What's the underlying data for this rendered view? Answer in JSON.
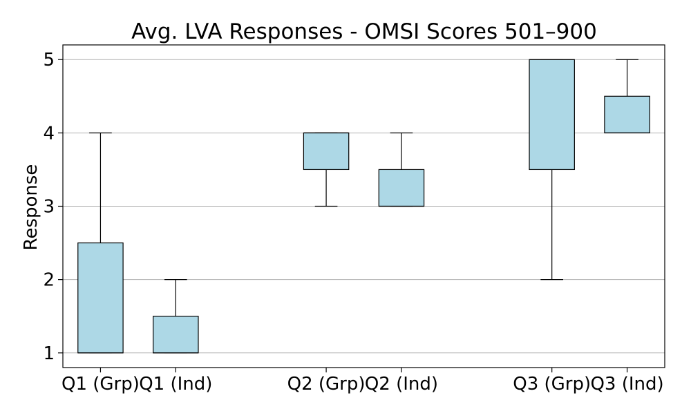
{
  "chart_data": {
    "type": "box",
    "title": "Avg. LVA Responses - OMSI Scores 501–900",
    "xlabel": "",
    "ylabel": "Response",
    "ylim": [
      0.8,
      5.2
    ],
    "yticks": [
      1,
      2,
      3,
      4,
      5
    ],
    "grid": "horizontal",
    "categories": [
      "Q1 (Grp)",
      "Q1 (Ind)",
      "Q2 (Grp)",
      "Q2 (Ind)",
      "Q3 (Grp)",
      "Q3 (Ind)"
    ],
    "x": [
      1,
      2,
      4,
      5,
      7,
      8
    ],
    "boxes": [
      {
        "label": "Q1 (Grp)",
        "whisker_low": 1,
        "q1": 1,
        "median": 1,
        "q3": 2.5,
        "whisker_high": 4
      },
      {
        "label": "Q1 (Ind)",
        "whisker_low": 1,
        "q1": 1,
        "median": 1,
        "q3": 1.5,
        "whisker_high": 2
      },
      {
        "label": "Q2 (Grp)",
        "whisker_low": 3,
        "q1": 3.5,
        "median": 4,
        "q3": 4,
        "whisker_high": 4
      },
      {
        "label": "Q2 (Ind)",
        "whisker_low": 3,
        "q1": 3,
        "median": 3,
        "q3": 3.5,
        "whisker_high": 4
      },
      {
        "label": "Q3 (Grp)",
        "whisker_low": 2,
        "q1": 3.5,
        "median": 5,
        "q3": 5,
        "whisker_high": 5
      },
      {
        "label": "Q3 (Ind)",
        "whisker_low": 4,
        "q1": 4,
        "median": 4,
        "q3": 4.5,
        "whisker_high": 5
      }
    ],
    "colors": {
      "box_fill": "#add8e6",
      "box_edge": "#000000",
      "median": "#000000",
      "grid": "#b0b0b0"
    }
  }
}
